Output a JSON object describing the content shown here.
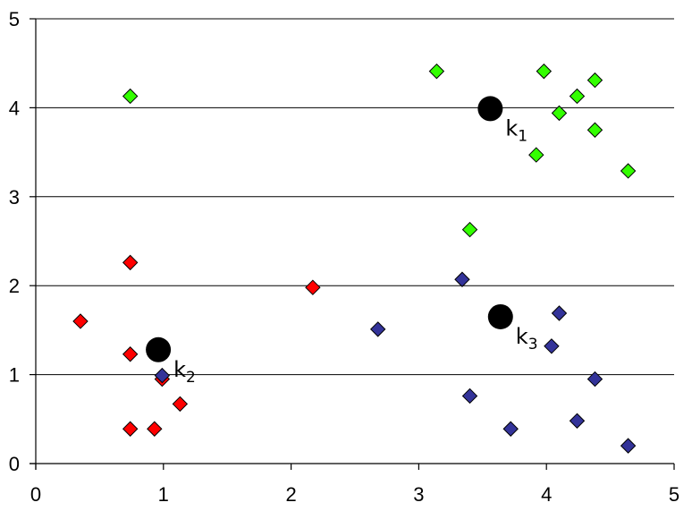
{
  "chart_data": {
    "type": "scatter",
    "title": "",
    "xlabel": "",
    "ylabel": "",
    "xlim": [
      0,
      5
    ],
    "ylim": [
      0,
      5
    ],
    "x_ticks": [
      "0",
      "1",
      "2",
      "3",
      "4",
      "5"
    ],
    "y_ticks": [
      "0",
      "1",
      "2",
      "3",
      "4",
      "5"
    ],
    "grid": "horizontal",
    "legend": "none",
    "series": [
      {
        "color": "#33ff00",
        "marker": "diamond",
        "points": [
          [
            0.74,
            4.13
          ],
          [
            3.14,
            4.41
          ],
          [
            3.98,
            4.41
          ],
          [
            4.38,
            4.31
          ],
          [
            4.24,
            4.13
          ],
          [
            4.1,
            3.94
          ],
          [
            4.38,
            3.75
          ],
          [
            3.92,
            3.47
          ],
          [
            4.64,
            3.29
          ],
          [
            3.4,
            2.63
          ]
        ]
      },
      {
        "color": "#ff0000",
        "marker": "diamond",
        "points": [
          [
            0.74,
            2.26
          ],
          [
            2.17,
            1.98
          ],
          [
            0.35,
            1.6
          ],
          [
            0.74,
            1.23
          ],
          [
            0.99,
            0.95
          ],
          [
            1.13,
            0.67
          ],
          [
            0.74,
            0.39
          ],
          [
            0.93,
            0.39
          ]
        ]
      },
      {
        "color": "#333399",
        "marker": "diamond",
        "points": [
          [
            3.34,
            2.07
          ],
          [
            2.68,
            1.51
          ],
          [
            4.1,
            1.69
          ],
          [
            4.04,
            1.32
          ],
          [
            0.99,
            0.99
          ],
          [
            3.4,
            0.76
          ],
          [
            4.38,
            0.95
          ],
          [
            3.72,
            0.39
          ],
          [
            4.24,
            0.48
          ],
          [
            4.64,
            0.2
          ]
        ]
      }
    ],
    "centroids": [
      {
        "label": "k",
        "sub": "1",
        "x": 3.56,
        "y": 3.99
      },
      {
        "label": "k",
        "sub": "2",
        "x": 0.96,
        "y": 1.28
      },
      {
        "label": "k",
        "sub": "3",
        "x": 3.64,
        "y": 1.65
      }
    ]
  }
}
